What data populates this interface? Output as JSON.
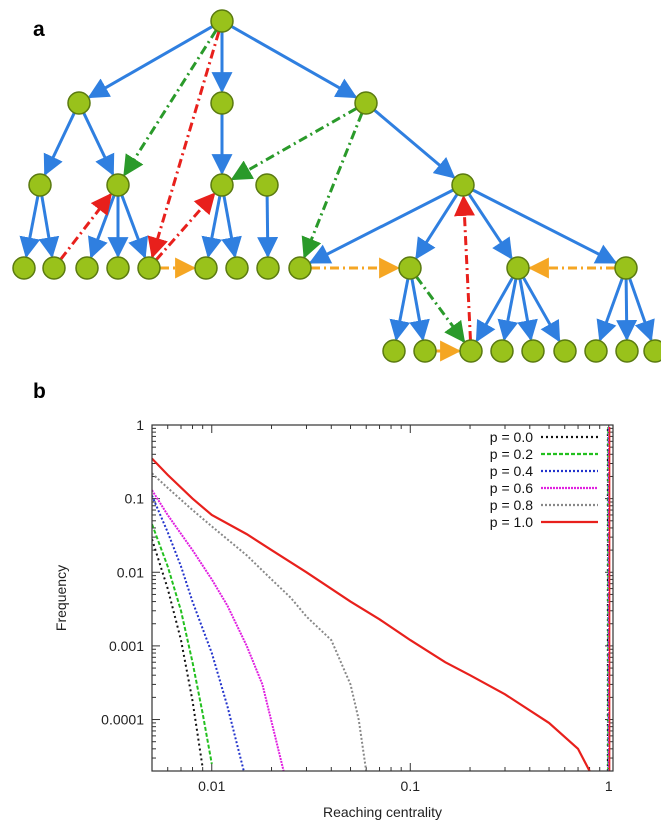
{
  "panels": {
    "a_label": "a",
    "b_label": "b"
  },
  "tree": {
    "node_color": "#99c21b",
    "node_stroke": "#5a7a10",
    "tree_edge_color": "#2f7fe0",
    "red_edge_color": "#e8201c",
    "green_edge_color": "#2a9a2a",
    "orange_edge_color": "#f5a623"
  },
  "chart_data": {
    "type": "line",
    "xlabel": "Reaching centrality",
    "ylabel": "Frequency",
    "x_scale": "log",
    "y_scale": "log",
    "xlim": [
      0.005,
      1.05
    ],
    "ylim": [
      2e-05,
      1
    ],
    "x_ticks": [
      0.01,
      0.1,
      1
    ],
    "x_tick_labels": [
      "0.01",
      "0.1",
      "1"
    ],
    "y_ticks": [
      1,
      0.1,
      0.01,
      0.001,
      0.0001
    ],
    "y_tick_labels": [
      "1",
      "0.1",
      "0.01",
      "0.001",
      "0.0001"
    ],
    "legend_position": "top-right",
    "grid": false,
    "series": [
      {
        "name": "p = 0.0",
        "color": "#111111",
        "dash": "2,3",
        "x": [
          0.005,
          0.006,
          0.007,
          0.008,
          0.009
        ],
        "y": [
          0.028,
          0.006,
          0.0012,
          0.00018,
          2.2e-05
        ]
      },
      {
        "name": "p = 0.2",
        "color": "#22c01e",
        "dash": "4,2",
        "x": [
          0.005,
          0.006,
          0.007,
          0.008,
          0.009,
          0.01
        ],
        "y": [
          0.045,
          0.012,
          0.003,
          0.0006,
          0.00012,
          2.5e-05
        ]
      },
      {
        "name": "p = 0.4",
        "color": "#2233cc",
        "dash": "2,2",
        "x": [
          0.005,
          0.006,
          0.007,
          0.008,
          0.01,
          0.012,
          0.0145
        ],
        "y": [
          0.11,
          0.035,
          0.012,
          0.004,
          0.0008,
          0.00015,
          2e-05
        ]
      },
      {
        "name": "p = 0.6",
        "color": "#e020e0",
        "dash": "2,1",
        "x": [
          0.005,
          0.006,
          0.008,
          0.01,
          0.012,
          0.015,
          0.018,
          0.023
        ],
        "y": [
          0.13,
          0.06,
          0.02,
          0.008,
          0.0035,
          0.001,
          0.0003,
          2e-05
        ]
      },
      {
        "name": "p = 0.8",
        "color": "#888888",
        "dash": "2,2",
        "x": [
          0.005,
          0.006,
          0.008,
          0.01,
          0.015,
          0.02,
          0.025,
          0.03,
          0.04,
          0.05,
          0.055,
          0.06
        ],
        "y": [
          0.22,
          0.14,
          0.07,
          0.042,
          0.017,
          0.008,
          0.0045,
          0.0025,
          0.0012,
          0.0003,
          0.0001,
          2e-05
        ]
      },
      {
        "name": "p = 1.0",
        "color": "#e8201c",
        "dash": "",
        "x": [
          0.005,
          0.006,
          0.008,
          0.01,
          0.015,
          0.02,
          0.03,
          0.05,
          0.07,
          0.1,
          0.15,
          0.2,
          0.3,
          0.5,
          0.7,
          0.8
        ],
        "y": [
          0.35,
          0.21,
          0.1,
          0.06,
          0.033,
          0.02,
          0.01,
          0.004,
          0.0023,
          0.0012,
          0.0006,
          0.0004,
          0.00022,
          9e-05,
          4e-05,
          2e-05
        ]
      }
    ]
  }
}
